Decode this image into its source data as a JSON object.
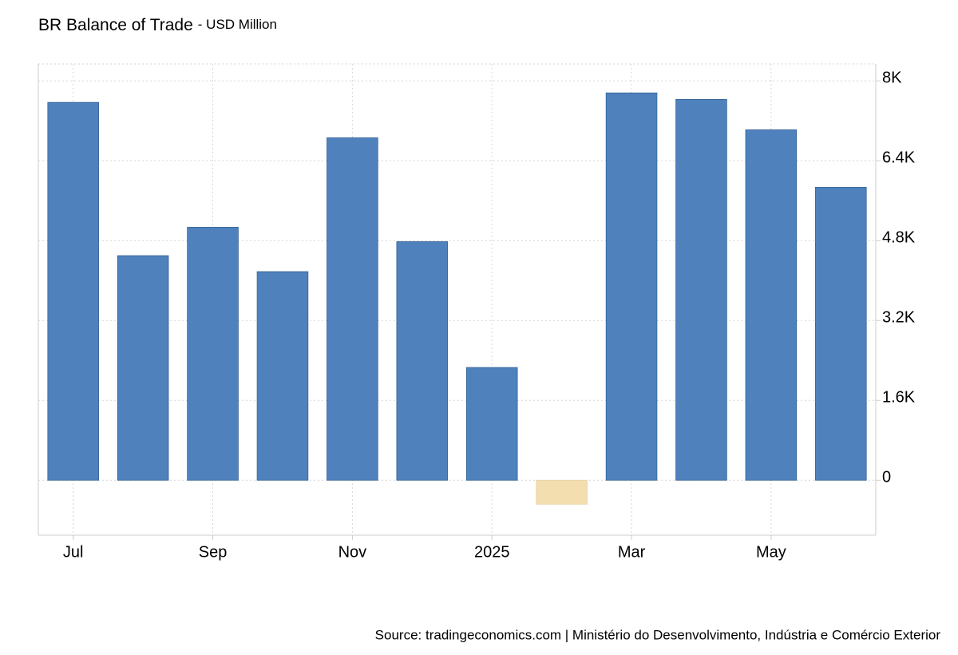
{
  "chart_data": {
    "type": "bar",
    "title": "BR Balance of Trade",
    "subtitle": "- USD Million",
    "source": "Source: tradingeconomics.com | Ministério do Desenvolvimento, Indústria e Comércio Exterior",
    "categories": [
      "Jul",
      null,
      "Sep",
      null,
      "Nov",
      null,
      "2025",
      null,
      "Mar",
      null,
      "May",
      null
    ],
    "values": [
      7570,
      4500,
      5070,
      4180,
      6860,
      4780,
      2260,
      -480,
      7760,
      7630,
      7020,
      5870
    ],
    "color": "#4f81bd",
    "negative_color": "#f3deb0",
    "ylim": [
      -1100,
      8340
    ],
    "yticks": [
      0,
      {
        "value": 1600,
        "label": "1.6K"
      },
      {
        "value": 3200,
        "label": "3.2K"
      },
      {
        "value": 4800,
        "label": "4.8K"
      },
      {
        "value": 6400,
        "label": "6.4K"
      },
      {
        "value": 8000,
        "label": "8K"
      }
    ],
    "grid": true
  }
}
